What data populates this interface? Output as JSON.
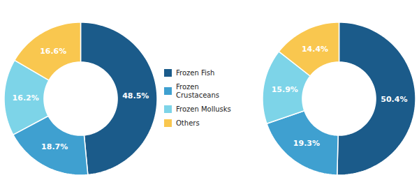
{
  "chart_data": [
    {
      "type": "donut",
      "categories": [
        "Frozen Fish",
        "Frozen\nCrustaceans",
        "Frozen Mollusks",
        "Others"
      ],
      "values": [
        48.5,
        18.7,
        16.2,
        16.6
      ],
      "value_labels": [
        "48.5%",
        "18.7%",
        "16.2%",
        "16.6%"
      ],
      "colors": [
        "#1b5b8a",
        "#3fa0d0",
        "#7dd4e8",
        "#f9c74f"
      ],
      "data_labels": true,
      "legend": "right"
    },
    {
      "type": "donut",
      "categories": [
        "Frozen Fish",
        "Frozen\nCrustaceans",
        "Frozen Mollusks",
        "Others"
      ],
      "values": [
        50.4,
        19.3,
        15.9,
        14.4
      ],
      "value_labels": [
        "50.4%",
        "19.3%",
        "15.9%",
        "14.4%"
      ],
      "colors": [
        "#1b5b8a",
        "#3fa0d0",
        "#7dd4e8",
        "#f9c74f"
      ],
      "data_labels": true
    }
  ]
}
